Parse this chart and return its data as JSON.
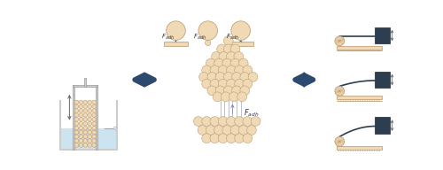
{
  "bg_color": "#ffffff",
  "particle_color": "#f0d9b5",
  "particle_edge": "#b8956a",
  "arrow_color": "#2c4a6e",
  "bar_color": "#f0d9b5",
  "bar_edge": "#b8956a",
  "water_color": "#cce4f0",
  "container_color": "#cccccc",
  "afm_dark": "#2c3e50",
  "fig_width": 5.0,
  "fig_height": 1.92,
  "dpi": 100
}
